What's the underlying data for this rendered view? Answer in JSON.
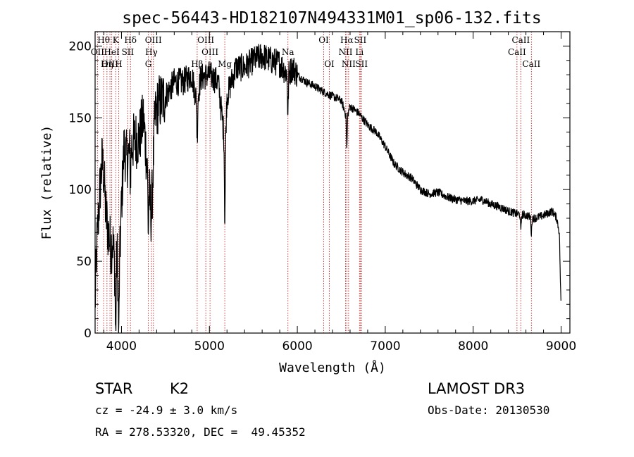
{
  "chart_data": {
    "type": "line",
    "title": "spec-56443-HD182107N494331M01_sp06-132.fits",
    "xlabel": "Wavelength (Å)",
    "ylabel": "Flux (relative)",
    "xlim": [
      3700,
      9100
    ],
    "ylim": [
      0,
      210
    ],
    "xticks": [
      4000,
      5000,
      6000,
      7000,
      8000,
      9000
    ],
    "xtick_labels": [
      "4000",
      "5000",
      "6000",
      "7000",
      "8000",
      "9000"
    ],
    "yticks": [
      0,
      50,
      100,
      150,
      200
    ],
    "ytick_labels": [
      "0",
      "50",
      "100",
      "150",
      "200"
    ],
    "grid": false,
    "spectrum_anchors": [
      [
        3700,
        20
      ],
      [
        3720,
        60
      ],
      [
        3750,
        95
      ],
      [
        3780,
        120
      ],
      [
        3800,
        110
      ],
      [
        3820,
        85
      ],
      [
        3850,
        70
      ],
      [
        3880,
        60
      ],
      [
        3900,
        65
      ],
      [
        3930,
        40
      ],
      [
        3950,
        55
      ],
      [
        3970,
        30
      ],
      [
        4000,
        90
      ],
      [
        4030,
        130
      ],
      [
        4060,
        120
      ],
      [
        4100,
        128
      ],
      [
        4150,
        135
      ],
      [
        4200,
        135
      ],
      [
        4250,
        150
      ],
      [
        4300,
        110
      ],
      [
        4340,
        80
      ],
      [
        4380,
        150
      ],
      [
        4420,
        160
      ],
      [
        4500,
        165
      ],
      [
        4600,
        175
      ],
      [
        4700,
        175
      ],
      [
        4800,
        180
      ],
      [
        4860,
        160
      ],
      [
        4900,
        178
      ],
      [
        5000,
        180
      ],
      [
        5100,
        175
      ],
      [
        5180,
        130
      ],
      [
        5200,
        165
      ],
      [
        5300,
        185
      ],
      [
        5400,
        185
      ],
      [
        5500,
        190
      ],
      [
        5600,
        193
      ],
      [
        5700,
        190
      ],
      [
        5800,
        188
      ],
      [
        5890,
        180
      ],
      [
        5950,
        185
      ],
      [
        6000,
        180
      ],
      [
        6100,
        175
      ],
      [
        6200,
        172
      ],
      [
        6300,
        168
      ],
      [
        6400,
        165
      ],
      [
        6500,
        162
      ],
      [
        6563,
        150
      ],
      [
        6600,
        158
      ],
      [
        6700,
        153
      ],
      [
        6800,
        145
      ],
      [
        6900,
        140
      ],
      [
        7000,
        130
      ],
      [
        7100,
        118
      ],
      [
        7200,
        112
      ],
      [
        7300,
        108
      ],
      [
        7400,
        100
      ],
      [
        7500,
        97
      ],
      [
        7600,
        98
      ],
      [
        7700,
        95
      ],
      [
        7800,
        93
      ],
      [
        7900,
        92
      ],
      [
        8000,
        92
      ],
      [
        8100,
        93
      ],
      [
        8200,
        90
      ],
      [
        8300,
        88
      ],
      [
        8400,
        85
      ],
      [
        8500,
        83
      ],
      [
        8600,
        82
      ],
      [
        8700,
        80
      ],
      [
        8800,
        82
      ],
      [
        8900,
        85
      ],
      [
        8950,
        80
      ],
      [
        8980,
        70
      ],
      [
        9000,
        15
      ]
    ],
    "spectral_lines": [
      {
        "label": "Hθ",
        "wavelength": 3797,
        "row": 0
      },
      {
        "label": "OII",
        "wavelength": 3727,
        "row": 1
      },
      {
        "label": "OIII",
        "wavelength": 3869,
        "row": 2
      },
      {
        "label": "K",
        "wavelength": 3934,
        "row": 0
      },
      {
        "label": "HeI",
        "wavelength": 3889,
        "row": 1
      },
      {
        "label": "Hη",
        "wavelength": 3835,
        "row": 2
      },
      {
        "label": "SII",
        "wavelength": 4072,
        "row": 1
      },
      {
        "label": "H",
        "wavelength": 3968,
        "row": 2
      },
      {
        "label": "Hδ",
        "wavelength": 4102,
        "row": 0
      },
      {
        "label": "OIII",
        "wavelength": 4363,
        "row": 0
      },
      {
        "label": "Hγ",
        "wavelength": 4341,
        "row": 1
      },
      {
        "label": "G",
        "wavelength": 4305,
        "row": 2
      },
      {
        "label": "Hβ",
        "wavelength": 4861,
        "row": 2
      },
      {
        "label": "OIII",
        "wavelength": 4959,
        "row": 0
      },
      {
        "label": "OIII",
        "wavelength": 5007,
        "row": 1
      },
      {
        "label": "Mg",
        "wavelength": 5175,
        "row": 2
      },
      {
        "label": "Na",
        "wavelength": 5893,
        "row": 1
      },
      {
        "label": "OI",
        "wavelength": 6300,
        "row": 0
      },
      {
        "label": "OI",
        "wavelength": 6364,
        "row": 2
      },
      {
        "label": "Hα",
        "wavelength": 6563,
        "row": 0
      },
      {
        "label": "NII",
        "wavelength": 6548,
        "row": 1
      },
      {
        "label": "NII",
        "wavelength": 6583,
        "row": 2
      },
      {
        "label": "SII",
        "wavelength": 6716,
        "row": 0
      },
      {
        "label": "Li",
        "wavelength": 6707,
        "row": 1
      },
      {
        "label": "SII",
        "wavelength": 6731,
        "row": 2
      },
      {
        "label": "CaII",
        "wavelength": 8542,
        "row": 0
      },
      {
        "label": "CaII",
        "wavelength": 8498,
        "row": 1
      },
      {
        "label": "CaII",
        "wavelength": 8662,
        "row": 2
      }
    ]
  },
  "info": {
    "object_class": "STAR",
    "subclass": "K2",
    "survey": "LAMOST DR3",
    "redshift": "cz = -24.9 ± 3.0 km/s",
    "obs_date": "Obs-Date: 20130530",
    "coords": "RA = 278.53320, DEC =  49.45352"
  },
  "colors": {
    "spectrum": "#000000",
    "line_marker": "#cc2222"
  }
}
